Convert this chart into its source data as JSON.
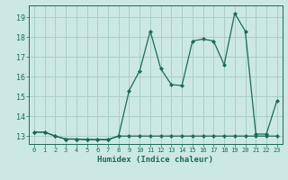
{
  "xlabel": "Humidex (Indice chaleur)",
  "background_color": "#cce8e4",
  "grid_color": "#a8ceca",
  "line_color": "#1a6b5a",
  "xlim": [
    -0.5,
    23.5
  ],
  "ylim": [
    12.6,
    19.6
  ],
  "xtick_labels": [
    "0",
    "1",
    "2",
    "3",
    "4",
    "5",
    "6",
    "7",
    "8",
    "9",
    "10",
    "11",
    "12",
    "13",
    "14",
    "15",
    "16",
    "17",
    "18",
    "19",
    "20",
    "21",
    "22",
    "23"
  ],
  "yticks": [
    13,
    14,
    15,
    16,
    17,
    18,
    19
  ],
  "line1_x": [
    0,
    1,
    2,
    3,
    4,
    5,
    6,
    7,
    8,
    9,
    10,
    11,
    12,
    13,
    14,
    15,
    16,
    17,
    18,
    19,
    20,
    21,
    22,
    23
  ],
  "line1_y": [
    13.2,
    13.2,
    13.0,
    12.85,
    12.85,
    12.82,
    12.82,
    12.82,
    13.0,
    15.3,
    16.3,
    18.3,
    16.4,
    15.6,
    15.55,
    17.8,
    17.9,
    17.8,
    16.6,
    19.2,
    18.3,
    13.1,
    13.1,
    14.8
  ],
  "line2_x": [
    0,
    1,
    2,
    3,
    4,
    5,
    6,
    7,
    8,
    9,
    10,
    11,
    12,
    13,
    14,
    15,
    16,
    17,
    18,
    19,
    20,
    21,
    22,
    23
  ],
  "line2_y": [
    13.2,
    13.2,
    13.0,
    12.85,
    12.85,
    12.82,
    12.82,
    12.82,
    13.0,
    13.0,
    13.0,
    13.0,
    13.0,
    13.0,
    13.0,
    13.0,
    13.0,
    13.0,
    13.0,
    13.0,
    13.0,
    13.0,
    13.0,
    13.0
  ]
}
